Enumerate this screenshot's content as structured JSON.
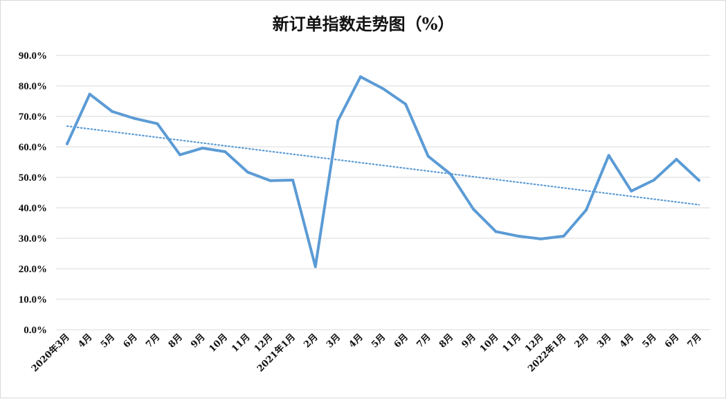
{
  "chart_data": {
    "type": "line",
    "title": "新订单指数走势图（%）",
    "xlabel": "",
    "ylabel": "",
    "ylim": [
      0,
      90
    ],
    "y_ticks": [
      "0.0%",
      "10.0%",
      "20.0%",
      "30.0%",
      "40.0%",
      "50.0%",
      "60.0%",
      "70.0%",
      "80.0%",
      "90.0%"
    ],
    "grid": true,
    "legend": "none",
    "categories": [
      "2020年3月",
      "4月",
      "5月",
      "6月",
      "7月",
      "8月",
      "9月",
      "10月",
      "11月",
      "12月",
      "2021年1月",
      "2月",
      "3月",
      "4月",
      "5月",
      "6月",
      "7月",
      "8月",
      "9月",
      "10月",
      "11月",
      "12月",
      "2022年1月",
      "2月",
      "3月",
      "4月",
      "5月",
      "6月",
      "7月"
    ],
    "series": [
      {
        "color": "#5b9bd5",
        "values": [
          61.0,
          77.3,
          71.6,
          69.3,
          67.6,
          57.4,
          59.6,
          58.4,
          51.7,
          48.9,
          49.1,
          20.7,
          68.6,
          83.0,
          79.1,
          74.0,
          56.9,
          51.0,
          39.6,
          32.2,
          30.7,
          29.8,
          30.7,
          39.3,
          57.2,
          45.5,
          49.1,
          55.9,
          49.0
        ]
      }
    ],
    "trendline": {
      "type": "linear",
      "start": 66.8,
      "end": 41.0,
      "color": "#5b9bd5",
      "style": "dotted"
    }
  }
}
